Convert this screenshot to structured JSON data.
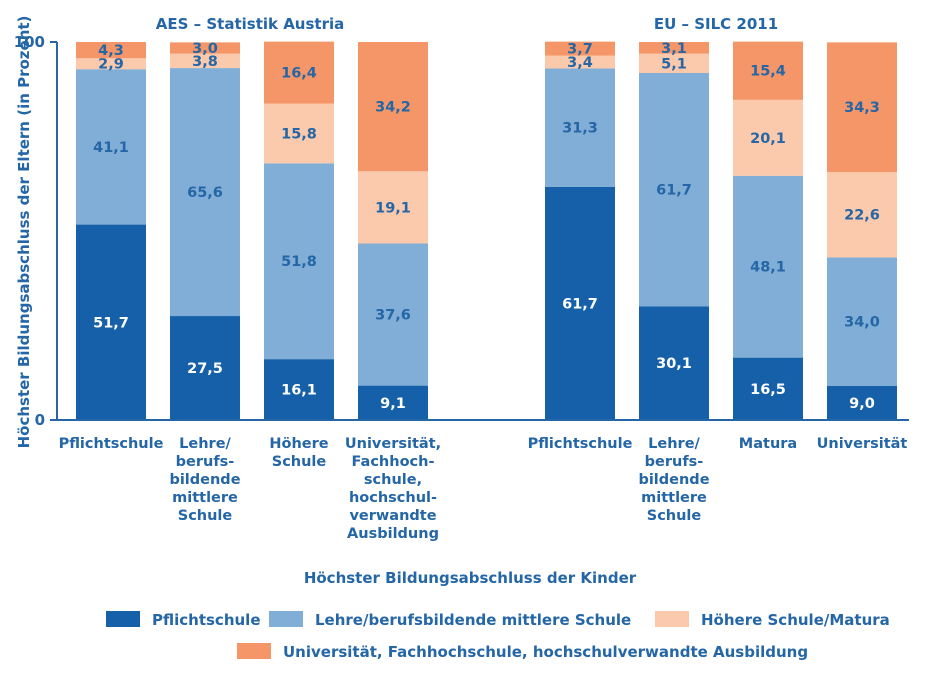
{
  "colors": {
    "pflichtschule": "#1560a9",
    "lehre": "#80aed6",
    "hoehere": "#fbc9ab",
    "uni": "#f59668",
    "text": "#2466a6"
  },
  "chart_data": {
    "type": "bar",
    "stacked": true,
    "ylabel": "Höchster Bildungsabschluss der Eltern (in Prozent)",
    "xlabel": "Höchster Bildungsabschluss der Kinder",
    "ylim": [
      0,
      100
    ],
    "ticks": [
      "0",
      "100"
    ],
    "legend_position": "bottom",
    "legend": [
      "Pflichtschule",
      "Lehre/berufsbildende mittlere Schule",
      "Höhere Schule/Matura",
      "Universität, Fachhochschule, hochschulverwandte Ausbildung"
    ],
    "panels": [
      {
        "title": "AES – Statistik Austria",
        "categories": [
          [
            "Pflichtschule"
          ],
          [
            "Lehre/",
            "berufs-",
            "bildende",
            "mittlere",
            "Schule"
          ],
          [
            "Höhere",
            "Schule"
          ],
          [
            "Universität,",
            "Fachhoch-",
            "schule,",
            "hochschul-",
            "verwandte",
            "Ausbildung"
          ]
        ],
        "series": [
          {
            "key": "pflichtschule",
            "values": [
              51.7,
              27.5,
              16.1,
              9.1
            ],
            "labels": [
              "51,7",
              "27,5",
              "16,1",
              "9,1"
            ]
          },
          {
            "key": "lehre",
            "values": [
              41.1,
              65.6,
              51.8,
              37.6
            ],
            "labels": [
              "41,1",
              "65,6",
              "51,8",
              "37,6"
            ]
          },
          {
            "key": "hoehere",
            "values": [
              2.9,
              3.8,
              15.8,
              19.1
            ],
            "labels": [
              "2,9",
              "3,8",
              "15,8",
              "19,1"
            ]
          },
          {
            "key": "uni",
            "values": [
              4.3,
              3.0,
              16.4,
              34.2
            ],
            "labels": [
              "4,3",
              "3,0",
              "16,4",
              "34,2"
            ]
          }
        ]
      },
      {
        "title": "EU – SILC 2011",
        "categories": [
          [
            "Pflichtschule"
          ],
          [
            "Lehre/",
            "berufs-",
            "bildende",
            "mittlere",
            "Schule"
          ],
          [
            "Matura"
          ],
          [
            "Universität"
          ]
        ],
        "series": [
          {
            "key": "pflichtschule",
            "values": [
              61.7,
              30.1,
              16.5,
              9.0
            ],
            "labels": [
              "61,7",
              "30,1",
              "16,5",
              "9,0"
            ]
          },
          {
            "key": "lehre",
            "values": [
              31.3,
              61.7,
              48.1,
              34.0
            ],
            "labels": [
              "31,3",
              "61,7",
              "48,1",
              "34,0"
            ]
          },
          {
            "key": "hoehere",
            "values": [
              3.4,
              5.1,
              20.1,
              22.6
            ],
            "labels": [
              "3,4",
              "5,1",
              "20,1",
              "22,6"
            ]
          },
          {
            "key": "uni",
            "values": [
              3.7,
              3.1,
              15.4,
              34.3
            ],
            "labels": [
              "3,7",
              "3,1",
              "15,4",
              "34,3"
            ]
          }
        ]
      }
    ]
  }
}
